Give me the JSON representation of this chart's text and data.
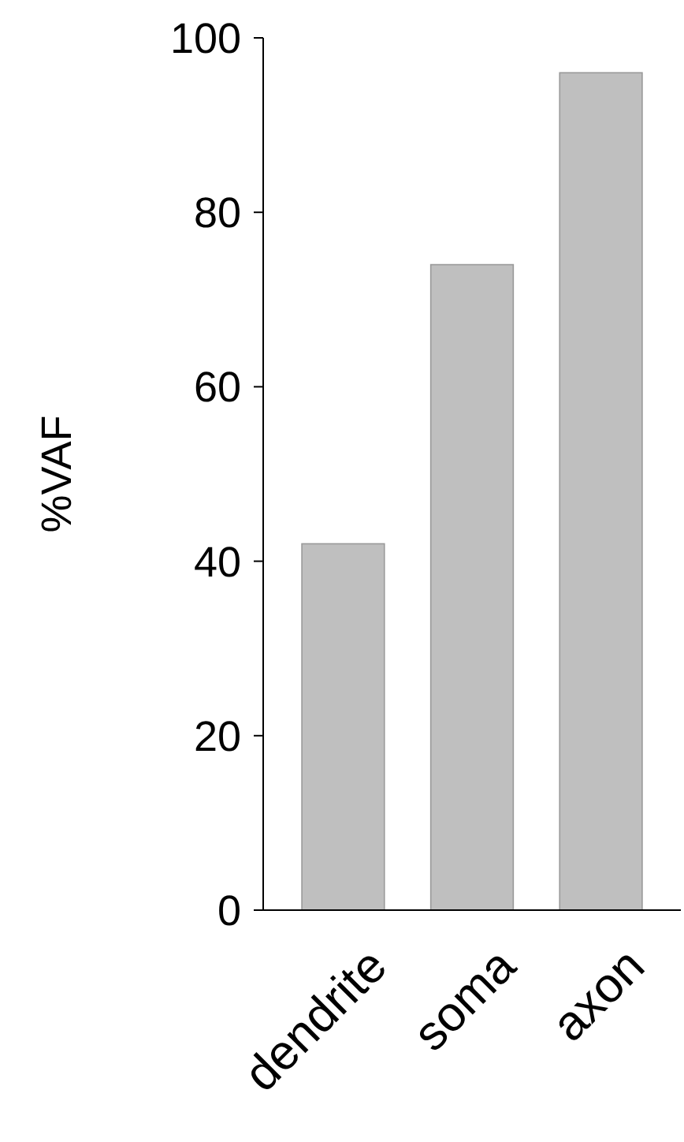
{
  "chart_data": {
    "type": "bar",
    "ylabel": "%VAF",
    "categories": [
      "dendrite",
      "soma",
      "axon"
    ],
    "values": [
      42,
      74,
      96
    ],
    "color": "#bfbfbf",
    "ylim": [
      0,
      100
    ],
    "yticks": [
      0,
      20,
      40,
      60,
      80,
      100
    ],
    "grid": false
  }
}
